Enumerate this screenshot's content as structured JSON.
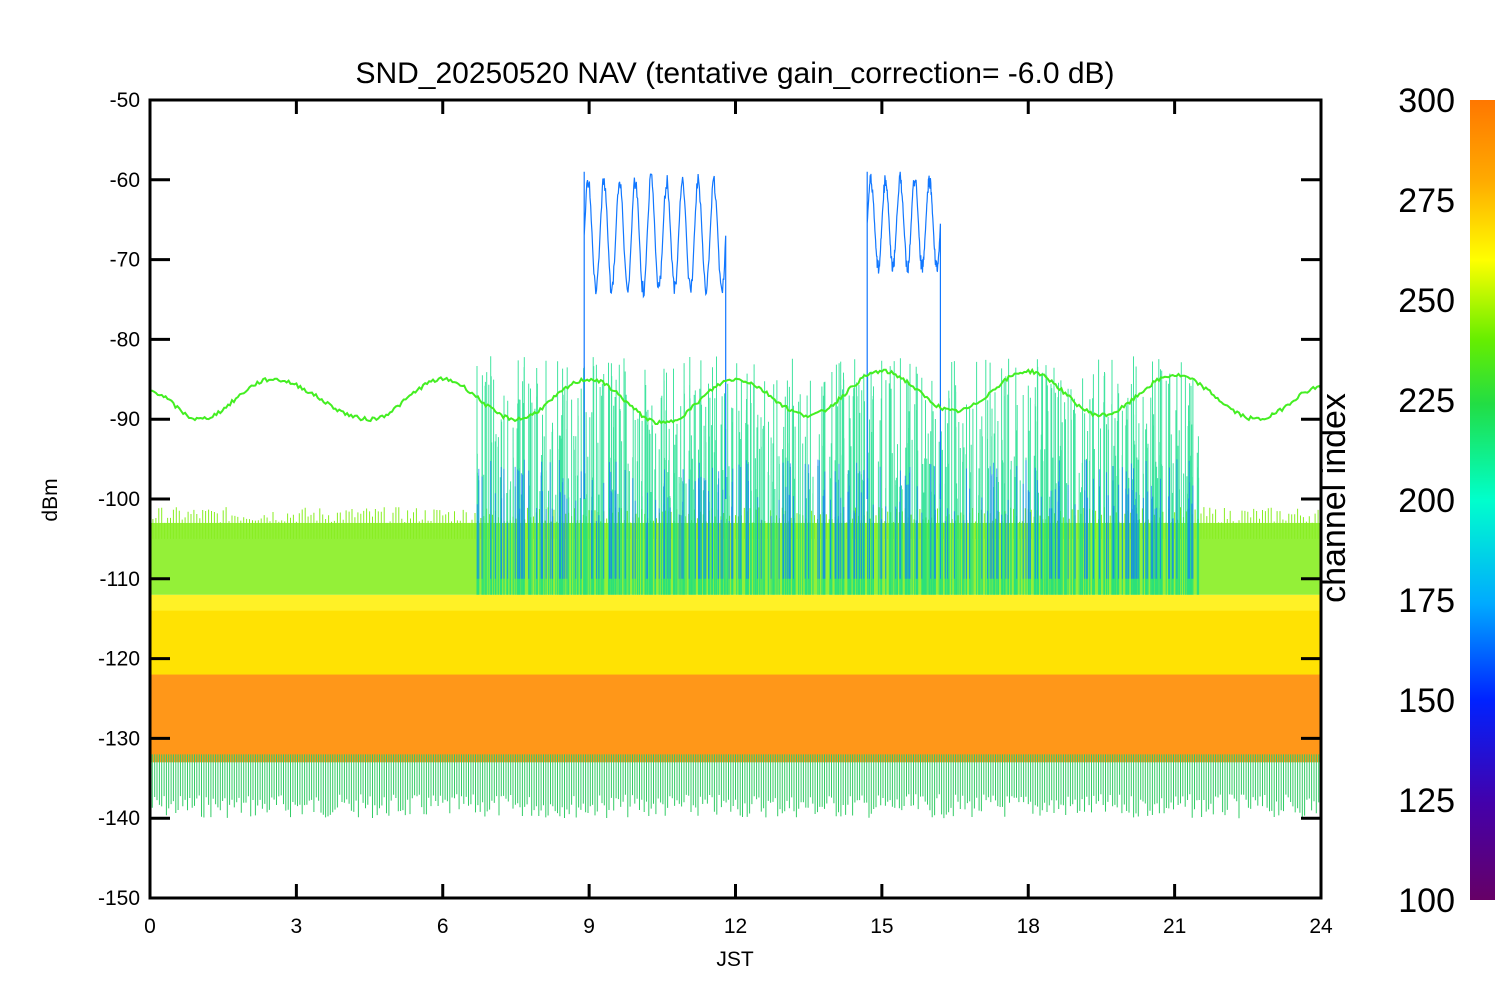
{
  "chart_data": {
    "type": "line",
    "title": "SND_20250520 NAV (tentative gain_correction= -6.0 dB)",
    "xlabel": "JST",
    "ylabel": "dBm",
    "xlim": [
      0,
      24
    ],
    "ylim": [
      -150,
      -50
    ],
    "x_ticks": [
      0,
      3,
      6,
      9,
      12,
      15,
      18,
      21,
      24
    ],
    "y_ticks": [
      -50,
      -60,
      -70,
      -80,
      -90,
      -100,
      -110,
      -120,
      -130,
      -140,
      -150
    ],
    "grid": false,
    "colorbar": {
      "label": "channel index",
      "range": [
        100,
        300
      ],
      "ticks": [
        300,
        275,
        250,
        225,
        200,
        175,
        150,
        125,
        100
      ],
      "colormap": "rainbow"
    },
    "series": [
      {
        "channel": 290,
        "description_role": "noise floor",
        "x": [
          0,
          24
        ],
        "y_center": [
          -125.5,
          -125.5
        ],
        "y_spread": [
          -136,
          -117
        ]
      },
      {
        "channel": 268,
        "description_role": "secondary band",
        "x": [
          0,
          24
        ],
        "y_center": [
          -118,
          -118
        ],
        "y_spread": [
          -122,
          -112
        ]
      },
      {
        "channel": 245,
        "description_role": "upper noise band",
        "x": [
          0,
          24
        ],
        "y_center": [
          -107.5,
          -107.5
        ],
        "y_spread": [
          -112,
          -103
        ]
      },
      {
        "channel": 240,
        "description_role": "sinusoidal carrier",
        "x": [
          0,
          1,
          2.5,
          4.5,
          6,
          7.5,
          9,
          10.5,
          12,
          13.5,
          15,
          16.5,
          18,
          19.5,
          21,
          22.7,
          24
        ],
        "y": [
          -86.5,
          -90,
          -85,
          -90,
          -85,
          -90,
          -85,
          -90.5,
          -85,
          -89.5,
          -84,
          -89,
          -84,
          -89.5,
          -84.5,
          -90,
          -86
        ]
      },
      {
        "channel": 150,
        "description_role": "burst block 1",
        "x": [
          8.9,
          11.8
        ],
        "y_range": [
          -75,
          -59
        ]
      },
      {
        "channel": 150,
        "description_role": "burst block 2",
        "x": [
          14.7,
          16.2
        ],
        "y_range": [
          -72,
          -59
        ]
      },
      {
        "channel": 200,
        "description_role": "daytime activity",
        "x": [
          6.7,
          21.5
        ],
        "y_range": [
          -120,
          -82
        ]
      }
    ]
  },
  "colors": {
    "noise_floor": "#ff8c00",
    "secondary_band": "#ffee00",
    "upper_band": "#88ee22",
    "carrier": "#44ee22",
    "burst": "#1177ff",
    "activity": "#11dd88"
  }
}
